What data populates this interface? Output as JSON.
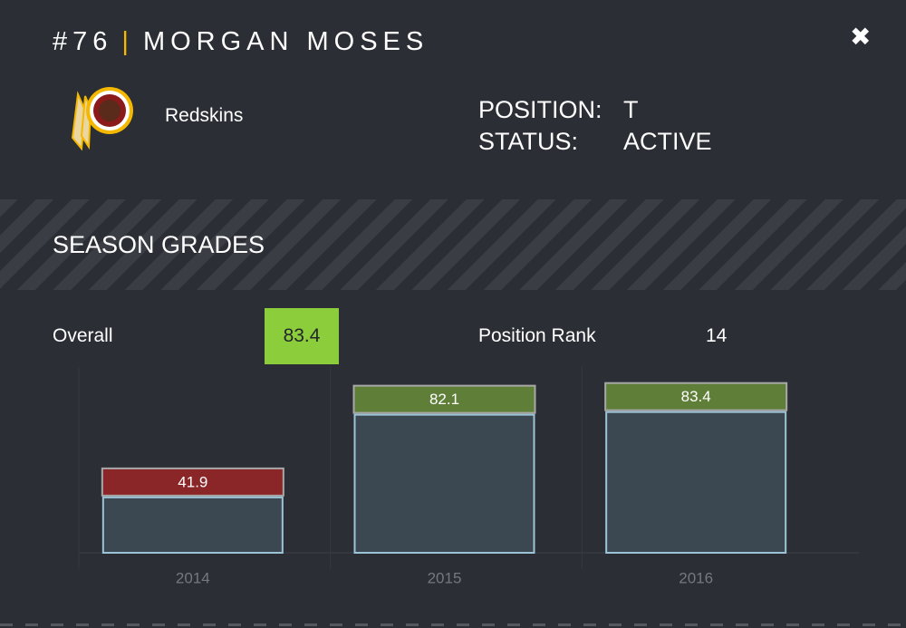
{
  "header": {
    "number": "#76",
    "separator": "|",
    "name": "MORGAN MOSES",
    "close": "✖"
  },
  "team": {
    "name": "Redskins"
  },
  "info": {
    "position_label": "POSITION:",
    "position": "T",
    "status_label": "STATUS:",
    "status": "ACTIVE"
  },
  "section": {
    "title": "SEASON GRADES"
  },
  "summary": {
    "overall_label": "Overall",
    "overall": 83.4,
    "rank_label": "Position Rank",
    "rank": 14
  },
  "chart_data": {
    "type": "bar",
    "categories": [
      "2014",
      "2015",
      "2016"
    ],
    "values": [
      41.9,
      82.1,
      83.4
    ],
    "colors": [
      "#8b2628",
      "#5f7f39",
      "#5f7f39"
    ],
    "ylim": [
      0,
      100
    ]
  }
}
